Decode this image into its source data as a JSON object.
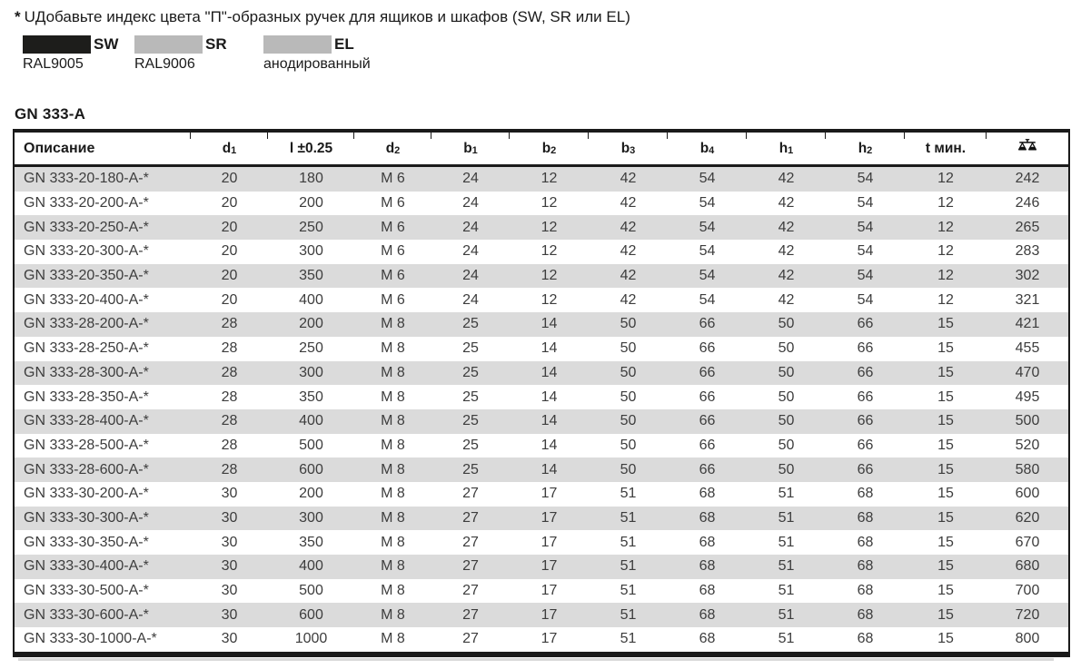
{
  "note": {
    "marker": "*",
    "text": "UДобавьте индекс цвета \"П\"-образных ручек для ящиков и шкафов (SW, SR или EL)"
  },
  "color_legend": [
    {
      "code": "SW",
      "swatch_color": "#1d1d1b",
      "description": "RAL9005"
    },
    {
      "code": "SR",
      "swatch_color": "#b9b9b9",
      "description": "RAL9006"
    },
    {
      "code": "EL",
      "swatch_color": "#b9b9b9",
      "description": "анодированный"
    }
  ],
  "table": {
    "title": "GN 333-A",
    "columns": [
      {
        "label": "Описание"
      },
      {
        "base": "d",
        "sub": "1"
      },
      {
        "label": "l ±0.25"
      },
      {
        "base": "d",
        "sub": "2"
      },
      {
        "base": "b",
        "sub": "1"
      },
      {
        "base": "b",
        "sub": "2"
      },
      {
        "base": "b",
        "sub": "3"
      },
      {
        "base": "b",
        "sub": "4"
      },
      {
        "base": "h",
        "sub": "1"
      },
      {
        "base": "h",
        "sub": "2"
      },
      {
        "label": "t мин."
      },
      {
        "icon": "scales-icon"
      }
    ],
    "rows": [
      [
        "GN 333-20-180-A-*",
        "20",
        "180",
        "M 6",
        "24",
        "12",
        "42",
        "54",
        "42",
        "54",
        "12",
        "242"
      ],
      [
        "GN 333-20-200-A-*",
        "20",
        "200",
        "M 6",
        "24",
        "12",
        "42",
        "54",
        "42",
        "54",
        "12",
        "246"
      ],
      [
        "GN 333-20-250-A-*",
        "20",
        "250",
        "M 6",
        "24",
        "12",
        "42",
        "54",
        "42",
        "54",
        "12",
        "265"
      ],
      [
        "GN 333-20-300-A-*",
        "20",
        "300",
        "M 6",
        "24",
        "12",
        "42",
        "54",
        "42",
        "54",
        "12",
        "283"
      ],
      [
        "GN 333-20-350-A-*",
        "20",
        "350",
        "M 6",
        "24",
        "12",
        "42",
        "54",
        "42",
        "54",
        "12",
        "302"
      ],
      [
        "GN 333-20-400-A-*",
        "20",
        "400",
        "M 6",
        "24",
        "12",
        "42",
        "54",
        "42",
        "54",
        "12",
        "321"
      ],
      [
        "GN 333-28-200-A-*",
        "28",
        "200",
        "M 8",
        "25",
        "14",
        "50",
        "66",
        "50",
        "66",
        "15",
        "421"
      ],
      [
        "GN 333-28-250-A-*",
        "28",
        "250",
        "M 8",
        "25",
        "14",
        "50",
        "66",
        "50",
        "66",
        "15",
        "455"
      ],
      [
        "GN 333-28-300-A-*",
        "28",
        "300",
        "M 8",
        "25",
        "14",
        "50",
        "66",
        "50",
        "66",
        "15",
        "470"
      ],
      [
        "GN 333-28-350-A-*",
        "28",
        "350",
        "M 8",
        "25",
        "14",
        "50",
        "66",
        "50",
        "66",
        "15",
        "495"
      ],
      [
        "GN 333-28-400-A-*",
        "28",
        "400",
        "M 8",
        "25",
        "14",
        "50",
        "66",
        "50",
        "66",
        "15",
        "500"
      ],
      [
        "GN 333-28-500-A-*",
        "28",
        "500",
        "M 8",
        "25",
        "14",
        "50",
        "66",
        "50",
        "66",
        "15",
        "520"
      ],
      [
        "GN 333-28-600-A-*",
        "28",
        "600",
        "M 8",
        "25",
        "14",
        "50",
        "66",
        "50",
        "66",
        "15",
        "580"
      ],
      [
        "GN 333-30-200-A-*",
        "30",
        "200",
        "M 8",
        "27",
        "17",
        "51",
        "68",
        "51",
        "68",
        "15",
        "600"
      ],
      [
        "GN 333-30-300-A-*",
        "30",
        "300",
        "M 8",
        "27",
        "17",
        "51",
        "68",
        "51",
        "68",
        "15",
        "620"
      ],
      [
        "GN 333-30-350-A-*",
        "30",
        "350",
        "M 8",
        "27",
        "17",
        "51",
        "68",
        "51",
        "68",
        "15",
        "670"
      ],
      [
        "GN 333-30-400-A-*",
        "30",
        "400",
        "M 8",
        "27",
        "17",
        "51",
        "68",
        "51",
        "68",
        "15",
        "680"
      ],
      [
        "GN 333-30-500-A-*",
        "30",
        "500",
        "M 8",
        "27",
        "17",
        "51",
        "68",
        "51",
        "68",
        "15",
        "700"
      ],
      [
        "GN 333-30-600-A-*",
        "30",
        "600",
        "M 8",
        "27",
        "17",
        "51",
        "68",
        "51",
        "68",
        "15",
        "720"
      ],
      [
        "GN 333-30-1000-A-*",
        "30",
        "1000",
        "M 8",
        "27",
        "17",
        "51",
        "68",
        "51",
        "68",
        "15",
        "800"
      ]
    ]
  },
  "colors": {
    "row_stripe": "#dbdbdb",
    "table_border": "#1a1a1a",
    "body_text": "#3d3d3d"
  }
}
